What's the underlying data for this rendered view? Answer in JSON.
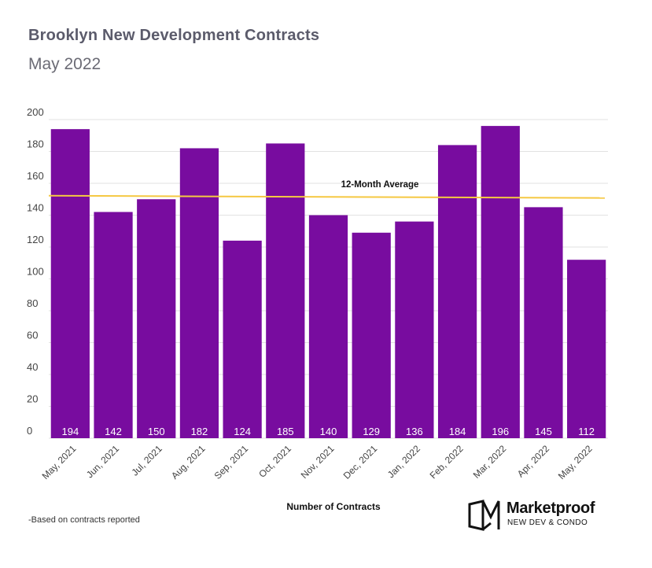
{
  "header": {
    "title": "Brooklyn New Development Contracts",
    "subtitle": "May 2022"
  },
  "footnote": "-Based on contracts reported",
  "logo": {
    "name": "Marketproof",
    "tagline": "NEW DEV & CONDO",
    "mark_icon": "marketproof-logo-icon"
  },
  "chart_data": {
    "type": "bar",
    "title": "Brooklyn New Development Contracts",
    "subtitle": "May 2022",
    "xlabel": "Number of Contracts",
    "ylabel": "",
    "categories": [
      "May, 2021",
      "Jun, 2021",
      "Jul, 2021",
      "Aug, 2021",
      "Sep, 2021",
      "Oct, 2021",
      "Nov, 2021",
      "Dec, 2021",
      "Jan, 2022",
      "Feb, 2022",
      "Mar, 2022",
      "Apr, 2022",
      "May, 2022"
    ],
    "values": [
      194,
      142,
      150,
      182,
      124,
      185,
      140,
      129,
      136,
      184,
      196,
      145,
      112
    ],
    "ylim": [
      0,
      200
    ],
    "yticks": [
      0,
      20,
      40,
      60,
      80,
      100,
      120,
      140,
      160,
      180,
      200
    ],
    "grid": true,
    "bar_color": "#780c9f",
    "average_line": {
      "label": "12-Month Average",
      "start": 152.2,
      "end": 150.8,
      "color": "#f5c842"
    }
  }
}
